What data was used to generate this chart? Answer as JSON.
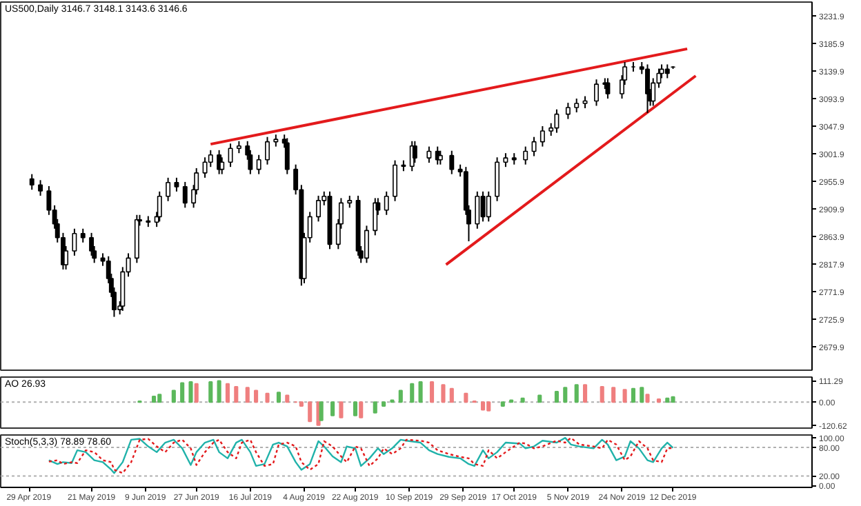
{
  "chart_data": [
    {
      "type": "candlestick",
      "title": "US500,Daily  3146.7 3148.1 3143.6 3146.6",
      "tick_labels": "y",
      "xlim": [
        "2019-04-19",
        "2020-01-30"
      ],
      "ylim": [
        2641,
        3255
      ],
      "yticks": [
        3231.9,
        3185.9,
        3139.9,
        3093.9,
        3047.9,
        3001.9,
        2955.9,
        2909.9,
        2863.9,
        2817.9,
        2771.9,
        2725.9,
        2679.9
      ],
      "x": [
        "2019-04-30",
        "2019-05-03",
        "2019-05-06",
        "2019-05-08",
        "2019-05-09",
        "2019-05-11",
        "2019-05-12",
        "2019-05-15",
        "2019-05-18",
        "2019-05-21",
        "2019-05-22",
        "2019-05-25",
        "2019-05-27",
        "2019-05-28",
        "2019-05-29",
        "2019-05-31",
        "2019-06-01",
        "2019-06-03",
        "2019-06-06",
        "2019-06-07",
        "2019-06-10",
        "2019-06-13",
        "2019-06-14",
        "2019-06-17",
        "2019-06-20",
        "2019-06-23",
        "2019-06-26",
        "2019-06-27",
        "2019-06-30",
        "2019-07-02",
        "2019-07-05",
        "2019-07-06",
        "2019-07-09",
        "2019-07-12",
        "2019-07-15",
        "2019-07-16",
        "2019-07-19",
        "2019-07-22",
        "2019-07-25",
        "2019-07-28",
        "2019-07-29",
        "2019-08-01",
        "2019-08-03",
        "2019-08-04",
        "2019-08-06",
        "2019-08-09",
        "2019-08-11",
        "2019-08-13",
        "2019-08-16",
        "2019-08-17",
        "2019-08-20",
        "2019-08-23",
        "2019-08-24",
        "2019-08-26",
        "2019-08-29",
        "2019-08-30",
        "2019-09-02",
        "2019-09-05",
        "2019-09-08",
        "2019-09-11",
        "2019-09-12",
        "2019-09-17",
        "2019-09-20",
        "2019-09-21",
        "2019-09-25",
        "2019-09-28",
        "2019-09-30",
        "2019-10-01",
        "2019-10-04",
        "2019-10-06",
        "2019-10-08",
        "2019-10-11",
        "2019-10-14",
        "2019-10-17",
        "2019-10-21",
        "2019-10-24",
        "2019-10-27",
        "2019-10-30",
        "2019-11-01",
        "2019-11-05",
        "2019-11-08",
        "2019-11-11",
        "2019-11-15",
        "2019-11-18",
        "2019-11-19",
        "2019-11-24",
        "2019-11-25",
        "2019-11-28",
        "2019-12-01",
        "2019-12-03",
        "2019-12-04",
        "2019-12-05",
        "2019-12-07",
        "2019-12-08",
        "2019-12-10",
        "2019-12-12"
      ],
      "ohlc": [
        [
          2960,
          2968,
          2942,
          2950
        ],
        [
          2950,
          2958,
          2932,
          2940
        ],
        [
          2940,
          2948,
          2900,
          2908
        ],
        [
          2908,
          2916,
          2877,
          2885
        ],
        [
          2885,
          2893,
          2854,
          2862
        ],
        [
          2862,
          2870,
          2809,
          2817
        ],
        [
          2817,
          2848,
          2809,
          2840
        ],
        [
          2840,
          2877,
          2832,
          2869
        ],
        [
          2869,
          2877,
          2854,
          2862
        ],
        [
          2862,
          2870,
          2832,
          2840
        ],
        [
          2840,
          2848,
          2820,
          2828
        ],
        [
          2828,
          2836,
          2815,
          2823
        ],
        [
          2823,
          2831,
          2786,
          2794
        ],
        [
          2794,
          2802,
          2763,
          2771
        ],
        [
          2771,
          2779,
          2730,
          2742
        ],
        [
          2742,
          2756,
          2734,
          2748
        ],
        [
          2748,
          2813,
          2740,
          2805
        ],
        [
          2805,
          2836,
          2797,
          2828
        ],
        [
          2828,
          2900,
          2820,
          2892
        ],
        [
          2892,
          2900,
          2882,
          2890
        ],
        [
          2890,
          2898,
          2880,
          2888
        ],
        [
          2888,
          2905,
          2880,
          2897
        ],
        [
          2897,
          2939,
          2889,
          2931
        ],
        [
          2931,
          2962,
          2923,
          2954
        ],
        [
          2954,
          2962,
          2939,
          2947
        ],
        [
          2947,
          2955,
          2912,
          2920
        ],
        [
          2920,
          2950,
          2912,
          2942
        ],
        [
          2942,
          2978,
          2934,
          2970
        ],
        [
          2970,
          2996,
          2962,
          2988
        ],
        [
          2988,
          3008,
          2980,
          3000
        ],
        [
          3000,
          3008,
          2968,
          2976
        ],
        [
          2976,
          2996,
          2968,
          2988
        ],
        [
          2988,
          3019,
          2980,
          3011
        ],
        [
          3011,
          3023,
          3003,
          3015
        ],
        [
          3015,
          3023,
          2992,
          3000
        ],
        [
          3000,
          3008,
          2968,
          2976
        ],
        [
          2976,
          3000,
          2968,
          2992
        ],
        [
          2992,
          3030,
          2984,
          3022
        ],
        [
          3022,
          3034,
          3014,
          3026
        ],
        [
          3026,
          3034,
          3012,
          3020
        ],
        [
          3020,
          3028,
          2968,
          2976
        ],
        [
          2976,
          2984,
          2934,
          2942
        ],
        [
          2942,
          2950,
          2782,
          2794
        ],
        [
          2794,
          2870,
          2786,
          2862
        ],
        [
          2862,
          2905,
          2854,
          2897
        ],
        [
          2897,
          2932,
          2889,
          2924
        ],
        [
          2924,
          2939,
          2916,
          2931
        ],
        [
          2931,
          2939,
          2843,
          2851
        ],
        [
          2851,
          2893,
          2843,
          2885
        ],
        [
          2885,
          2928,
          2877,
          2920
        ],
        [
          2920,
          2932,
          2912,
          2924
        ],
        [
          2924,
          2932,
          2832,
          2840
        ],
        [
          2840,
          2848,
          2820,
          2828
        ],
        [
          2828,
          2882,
          2820,
          2874
        ],
        [
          2874,
          2928,
          2866,
          2920
        ],
        [
          2920,
          2928,
          2900,
          2908
        ],
        [
          2908,
          2939,
          2900,
          2931
        ],
        [
          2931,
          2991,
          2923,
          2983
        ],
        [
          2983,
          2991,
          2973,
          2981
        ],
        [
          2981,
          3023,
          2973,
          3015
        ],
        [
          3015,
          3023,
          2987,
          2995
        ],
        [
          2995,
          3014,
          2987,
          3006
        ],
        [
          3006,
          3014,
          2984,
          2992
        ],
        [
          2992,
          3007,
          2984,
          2999
        ],
        [
          2999,
          3007,
          2968,
          2976
        ],
        [
          2976,
          2984,
          2964,
          2972
        ],
        [
          2972,
          2980,
          2900,
          2908
        ],
        [
          2908,
          2916,
          2856,
          2885
        ],
        [
          2885,
          2939,
          2877,
          2931
        ],
        [
          2931,
          2939,
          2889,
          2897
        ],
        [
          2897,
          2939,
          2889,
          2931
        ],
        [
          2931,
          2996,
          2923,
          2988
        ],
        [
          2988,
          3003,
          2980,
          2995
        ],
        [
          2995,
          3003,
          2984,
          2992
        ],
        [
          2992,
          3014,
          2984,
          3006
        ],
        [
          3006,
          3030,
          2998,
          3022
        ],
        [
          3022,
          3048,
          3014,
          3040
        ],
        [
          3040,
          3053,
          3032,
          3045
        ],
        [
          3045,
          3076,
          3037,
          3068
        ],
        [
          3068,
          3087,
          3060,
          3079
        ],
        [
          3079,
          3094,
          3071,
          3086
        ],
        [
          3086,
          3098,
          3078,
          3090
        ],
        [
          3090,
          3126,
          3082,
          3118
        ],
        [
          3118,
          3128,
          3110,
          3120
        ],
        [
          3120,
          3128,
          3094,
          3102
        ],
        [
          3102,
          3133,
          3094,
          3125
        ],
        [
          3125,
          3155,
          3117,
          3147
        ],
        [
          3147,
          3155,
          3139,
          3147
        ],
        [
          3147,
          3155,
          3135,
          3143
        ],
        [
          3143,
          3151,
          3070,
          3102
        ],
        [
          3102,
          3110,
          3082,
          3090
        ],
        [
          3090,
          3128,
          3082,
          3120
        ],
        [
          3120,
          3144,
          3112,
          3136
        ],
        [
          3136,
          3151,
          3128,
          3143
        ],
        [
          3143,
          3151,
          3128,
          3136
        ],
        [
          3146.7,
          3148.1,
          3143.6,
          3146.6
        ]
      ],
      "series": [
        {
          "type": "line",
          "color": "#e31a1c",
          "x": [
            "2019-07-02",
            "2019-12-17"
          ],
          "values": [
            3018,
            3177
          ]
        },
        {
          "type": "line",
          "color": "#e31a1c",
          "x": [
            "2019-09-23",
            "2019-12-20"
          ],
          "values": [
            2817,
            3132
          ]
        }
      ]
    },
    {
      "type": "bar",
      "title": "AO 26.93",
      "tick_labels": "y",
      "xlim": [
        "2019-04-19",
        "2020-01-30"
      ],
      "ylim": [
        -135,
        130
      ],
      "yticks": [
        {
          "value": 111.29,
          "label": "111.29"
        },
        {
          "value": 0,
          "label": "0.00"
        },
        {
          "value": -120.62,
          "label": "-120.62"
        }
      ],
      "ref_lines": [
        {
          "axis": "y",
          "value": 0,
          "color": "#b0b0b0",
          "line_style": "dotted"
        }
      ],
      "x": [
        "2019-06-07",
        "2019-06-12",
        "2019-06-14",
        "2019-06-19",
        "2019-06-22",
        "2019-06-25",
        "2019-06-27",
        "2019-07-02",
        "2019-07-05",
        "2019-07-08",
        "2019-07-11",
        "2019-07-15",
        "2019-07-18",
        "2019-07-22",
        "2019-07-26",
        "2019-07-29",
        "2019-08-01",
        "2019-08-03",
        "2019-08-06",
        "2019-08-09",
        "2019-08-10",
        "2019-08-14",
        "2019-08-17",
        "2019-08-22",
        "2019-08-24",
        "2019-08-29",
        "2019-09-01",
        "2019-09-04",
        "2019-09-07",
        "2019-09-11",
        "2019-09-14",
        "2019-09-18",
        "2019-09-22",
        "2019-09-25",
        "2019-09-30",
        "2019-10-03",
        "2019-10-06",
        "2019-10-08",
        "2019-10-13",
        "2019-10-16",
        "2019-10-20",
        "2019-10-26",
        "2019-11-01",
        "2019-11-04",
        "2019-11-08",
        "2019-11-11",
        "2019-11-17",
        "2019-11-21",
        "2019-11-25",
        "2019-11-28",
        "2019-12-01",
        "2019-12-03",
        "2019-12-07",
        "2019-12-10",
        "2019-12-12"
      ],
      "values": [
        5,
        30,
        40,
        60,
        100,
        105,
        95,
        105,
        110,
        95,
        80,
        75,
        60,
        45,
        50,
        35,
        0,
        -20,
        -100,
        -120,
        -95,
        -70,
        -80,
        -70,
        -80,
        -55,
        -20,
        10,
        60,
        95,
        105,
        105,
        90,
        70,
        45,
        5,
        -40,
        -45,
        -20,
        10,
        20,
        35,
        55,
        75,
        90,
        90,
        80,
        75,
        65,
        70,
        75,
        40,
        15,
        20,
        26.93
      ],
      "colors": [
        "#5cb85c",
        "#5cb85c",
        "#5cb85c",
        "#5cb85c",
        "#5cb85c",
        "#5cb85c",
        "#ef7f7f",
        "#5cb85c",
        "#5cb85c",
        "#ef7f7f",
        "#ef7f7f",
        "#ef7f7f",
        "#ef7f7f",
        "#ef7f7f",
        "#5cb85c",
        "#ef7f7f",
        "#ef7f7f",
        "#ef7f7f",
        "#ef7f7f",
        "#ef7f7f",
        "#5cb85c",
        "#5cb85c",
        "#ef7f7f",
        "#5cb85c",
        "#ef7f7f",
        "#5cb85c",
        "#5cb85c",
        "#5cb85c",
        "#5cb85c",
        "#5cb85c",
        "#5cb85c",
        "#ef7f7f",
        "#ef7f7f",
        "#ef7f7f",
        "#ef7f7f",
        "#ef7f7f",
        "#ef7f7f",
        "#ef7f7f",
        "#5cb85c",
        "#5cb85c",
        "#5cb85c",
        "#5cb85c",
        "#5cb85c",
        "#5cb85c",
        "#5cb85c",
        "#ef7f7f",
        "#ef7f7f",
        "#ef7f7f",
        "#ef7f7f",
        "#5cb85c",
        "#5cb85c",
        "#ef7f7f",
        "#ef7f7f",
        "#5cb85c",
        "#5cb85c"
      ]
    },
    {
      "type": "line",
      "title": "Stoch(5,3,3) 78.89 78.60",
      "xlim": [
        "2019-04-19",
        "2020-01-30"
      ],
      "ylim": [
        -4,
        106
      ],
      "yticks": [
        {
          "value": 100,
          "label": "100.00"
        },
        {
          "value": 80,
          "label": "80.00"
        },
        {
          "value": 20,
          "label": "20.00"
        },
        {
          "value": 0,
          "label": "0.00"
        }
      ],
      "xticks": [
        {
          "value": "2019-04-29",
          "label": "29 Apr 2019"
        },
        {
          "value": "2019-05-21",
          "label": "21 May 2019"
        },
        {
          "value": "2019-06-09",
          "label": "9 Jun 2019"
        },
        {
          "value": "2019-06-27",
          "label": "27 Jun 2019"
        },
        {
          "value": "2019-07-16",
          "label": "16 Jul 2019"
        },
        {
          "value": "2019-08-04",
          "label": "4 Aug 2019"
        },
        {
          "value": "2019-08-22",
          "label": "22 Aug 2019"
        },
        {
          "value": "2019-09-10",
          "label": "10 Sep 2019"
        },
        {
          "value": "2019-09-29",
          "label": "29 Sep 2019"
        },
        {
          "value": "2019-10-17",
          "label": "17 Oct 2019"
        },
        {
          "value": "2019-11-05",
          "label": "5 Nov 2019"
        },
        {
          "value": "2019-11-24",
          "label": "24 Nov 2019"
        },
        {
          "value": "2019-12-12",
          "label": "12 Dec 2019"
        }
      ],
      "ref_lines": [
        {
          "axis": "y",
          "value": 80,
          "color": "#b0b0b0",
          "line_style": "dotted"
        },
        {
          "axis": "y",
          "value": 20,
          "color": "#b0b0b0",
          "line_style": "dotted"
        }
      ],
      "x": [
        "2019-05-06",
        "2019-05-09",
        "2019-05-11",
        "2019-05-14",
        "2019-05-16",
        "2019-05-19",
        "2019-05-22",
        "2019-05-25",
        "2019-05-28",
        "2019-05-29",
        "2019-06-01",
        "2019-06-04",
        "2019-06-07",
        "2019-06-10",
        "2019-06-13",
        "2019-06-16",
        "2019-06-19",
        "2019-06-22",
        "2019-06-25",
        "2019-06-27",
        "2019-06-30",
        "2019-07-03",
        "2019-07-05",
        "2019-07-08",
        "2019-07-11",
        "2019-07-13",
        "2019-07-16",
        "2019-07-18",
        "2019-07-21",
        "2019-07-24",
        "2019-07-26",
        "2019-07-29",
        "2019-08-01",
        "2019-08-03",
        "2019-08-06",
        "2019-08-09",
        "2019-08-11",
        "2019-08-14",
        "2019-08-17",
        "2019-08-19",
        "2019-08-22",
        "2019-08-24",
        "2019-08-27",
        "2019-08-30",
        "2019-09-01",
        "2019-09-04",
        "2019-09-07",
        "2019-09-09",
        "2019-09-14",
        "2019-09-17",
        "2019-09-20",
        "2019-09-24",
        "2019-09-28",
        "2019-10-01",
        "2019-10-03",
        "2019-10-06",
        "2019-10-08",
        "2019-10-11",
        "2019-10-14",
        "2019-10-19",
        "2019-10-21",
        "2019-10-24",
        "2019-10-27",
        "2019-11-01",
        "2019-11-04",
        "2019-11-06",
        "2019-11-09",
        "2019-11-14",
        "2019-11-17",
        "2019-11-19",
        "2019-11-22",
        "2019-11-25",
        "2019-11-27",
        "2019-11-30",
        "2019-12-03",
        "2019-12-05",
        "2019-12-08",
        "2019-12-10",
        "2019-12-12"
      ],
      "series": [
        {
          "color": "#20b2aa",
          "line_style": "solid",
          "values": [
            53,
            45,
            49,
            47,
            74,
            70,
            53,
            49,
            33,
            26,
            49,
            96,
            98,
            82,
            70,
            90,
            96,
            78,
            43,
            70,
            90,
            96,
            70,
            57,
            90,
            96,
            70,
            41,
            45,
            86,
            90,
            82,
            49,
            33,
            45,
            93,
            82,
            61,
            49,
            82,
            78,
            41,
            57,
            78,
            66,
            78,
            96,
            94,
            90,
            74,
            66,
            60,
            57,
            45,
            41,
            74,
            57,
            70,
            90,
            88,
            78,
            82,
            94,
            90,
            100,
            86,
            82,
            78,
            96,
            86,
            53,
            61,
            93,
            78,
            53,
            49,
            78,
            90,
            78.89
          ]
        },
        {
          "color": "#e31a1c",
          "line_style": "dotted",
          "values": [
            50,
            53,
            45,
            49,
            47,
            74,
            70,
            53,
            49,
            33,
            26,
            49,
            96,
            98,
            82,
            70,
            90,
            96,
            78,
            43,
            70,
            90,
            96,
            70,
            57,
            90,
            96,
            70,
            41,
            45,
            86,
            90,
            82,
            49,
            33,
            45,
            93,
            82,
            61,
            49,
            82,
            78,
            41,
            57,
            78,
            66,
            78,
            96,
            94,
            90,
            74,
            66,
            60,
            57,
            45,
            41,
            74,
            57,
            70,
            90,
            88,
            78,
            82,
            94,
            90,
            100,
            86,
            82,
            78,
            96,
            86,
            53,
            61,
            93,
            78,
            53,
            49,
            78,
            78.6
          ]
        }
      ]
    }
  ]
}
